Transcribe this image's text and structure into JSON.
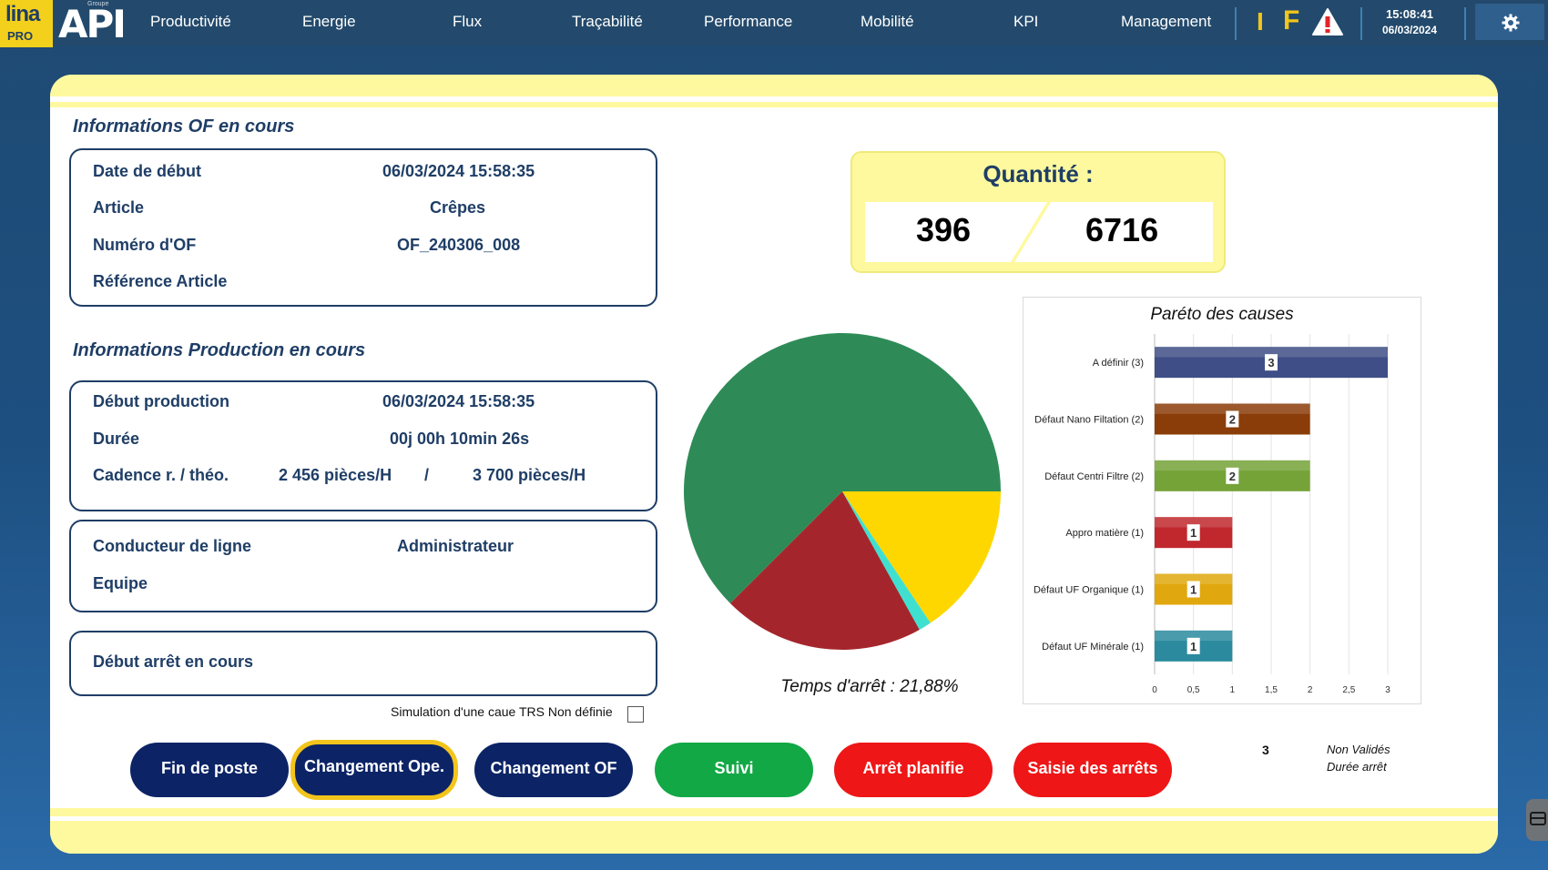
{
  "header": {
    "logo_lina": "lina",
    "logo_pro": "PRO",
    "logo_api": "API",
    "logo_groupe": "Groupe",
    "nav": [
      "Productivité",
      "Energie",
      "Flux",
      "Traçabilité",
      "Performance",
      "Mobilité",
      "KPI",
      "Management"
    ],
    "indicator_i": "I",
    "indicator_f": "F",
    "time": "15:08:41",
    "date": "06/03/2024",
    "colors": {
      "bar": "#234a6c",
      "accent": "#f3c41b",
      "warning": "#e0262b"
    },
    "icons": {
      "warning": "warning-triangle-icon",
      "settings": "gear-icon"
    }
  },
  "of_info": {
    "title": "Informations OF en cours",
    "rows": [
      {
        "label": "Date de début",
        "value": "06/03/2024 15:58:35"
      },
      {
        "label": "Article",
        "value": "Crêpes"
      },
      {
        "label": "Numéro d'OF",
        "value": "OF_240306_008"
      },
      {
        "label": "Référence Article",
        "value": ""
      }
    ]
  },
  "prod_info": {
    "title": "Informations Production en cours",
    "debut_label": "Début production",
    "debut_value": "06/03/2024 15:58:35",
    "duree_label": "Durée",
    "duree_value": "00j 00h 10min 26s",
    "cadence_label": "Cadence r. / théo.",
    "cadence_real": "2 456  pièces/H",
    "cadence_sep": "/",
    "cadence_theo": "3 700  pièces/H"
  },
  "operator": {
    "conducteur_label": "Conducteur de ligne",
    "conducteur_value": "Administrateur",
    "equipe_label": "Equipe",
    "equipe_value": ""
  },
  "arret": {
    "label": "Début arrêt en cours",
    "value": ""
  },
  "quantity": {
    "title": "Quantité :",
    "produced": "396",
    "target": "6716"
  },
  "pie": {
    "caption": "Temps d'arrêt : 21,88%",
    "slices": [
      {
        "name": "green",
        "value": 62.5,
        "color": "#2e8b57"
      },
      {
        "name": "yellow",
        "value": 15.6,
        "color": "#ffd700"
      },
      {
        "name": "cyan",
        "value": 1.3,
        "color": "#40e0d0"
      },
      {
        "name": "red",
        "value": 20.6,
        "color": "#a4262c"
      }
    ]
  },
  "chart_data": {
    "type": "bar",
    "orientation": "horizontal",
    "title": "Paréto des causes",
    "categories": [
      "A définir (3)",
      "Défaut Nano Filtation (2)",
      "Défaut Centri Filtre (2)",
      "Appro matière (1)",
      "Défaut UF Organique (1)",
      "Défaut UF Minérale (1)"
    ],
    "values": [
      3,
      2,
      2,
      1,
      1,
      1
    ],
    "colors": [
      "#3f4e86",
      "#8a3d09",
      "#75a338",
      "#c0282d",
      "#e0a80e",
      "#2b8a9e"
    ],
    "xlim": [
      0,
      3
    ],
    "xticks": [
      "0",
      "0,5",
      "1",
      "1,5",
      "2",
      "2,5",
      "3"
    ],
    "grid": true
  },
  "simulation": {
    "label": "Simulation d'une caue TRS Non définie",
    "checked": false
  },
  "buttons": [
    {
      "label": "Fin de poste",
      "style": "navy"
    },
    {
      "label": "Changement Ope.",
      "style": "navy",
      "active": true
    },
    {
      "label": "Changement OF",
      "style": "navy"
    },
    {
      "label": "Suivi",
      "style": "green"
    },
    {
      "label": "Arrêt planifie",
      "style": "red"
    },
    {
      "label": "Saisie des arrêts",
      "style": "red"
    }
  ],
  "stats": {
    "count": "3",
    "non_valides": "Non Validés",
    "duree_arret": "Durée arrêt"
  }
}
